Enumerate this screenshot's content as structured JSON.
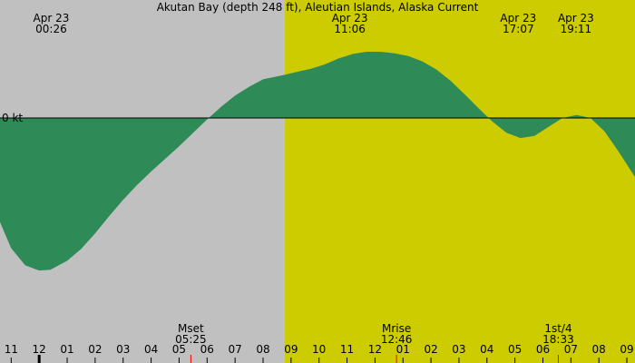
{
  "title": "Akutan Bay (depth 248 ft), Aleutian Islands, Alaska Current",
  "colors": {
    "night": "#c0c0c0",
    "day": "#cccc00",
    "current": "#2e8b57",
    "moon_tick": "#ff0000",
    "text": "#000000"
  },
  "chart_data": {
    "type": "area",
    "title": "Akutan Bay (depth 248 ft), Aleutian Islands, Alaska Current",
    "units": "kt",
    "zero_label": "0 kt",
    "hour_labels": [
      "11",
      "12",
      "01",
      "02",
      "03",
      "04",
      "05",
      "06",
      "07",
      "08",
      "09",
      "10",
      "11",
      "12",
      "01",
      "02",
      "03",
      "04",
      "05",
      "06",
      "07",
      "08",
      "09"
    ],
    "hour_label_start": 23,
    "midnight_label_index": 1,
    "daylight": {
      "start_hour": 32.78,
      "end_hour": 46.0
    },
    "top_events": [
      {
        "date": "Apr 23",
        "time": "00:26",
        "hour": 24.43
      },
      {
        "date": "Apr 23",
        "time": "11:06",
        "hour": 35.1
      },
      {
        "date": "Apr 23",
        "time": "17:07",
        "hour": 41.12
      },
      {
        "date": "Apr 23",
        "time": "19:11",
        "hour": 43.18
      }
    ],
    "bottom_events": [
      {
        "label": "Mset",
        "time": "05:25",
        "hour": 29.42
      },
      {
        "label": "Mrise",
        "time": "12:46",
        "hour": 36.77
      },
      {
        "label": "1st/4",
        "time": "18:33",
        "hour": 42.55
      }
    ],
    "moon_ticks": [
      29.42,
      36.77,
      42.55
    ],
    "x_range": [
      22.6,
      45.3
    ],
    "y_range": [
      -2.5,
      1.8
    ],
    "series": [
      {
        "hours": [
          22.6,
          23.0,
          23.5,
          24.0,
          24.4,
          25.0,
          25.5,
          26.0,
          26.5,
          27.0,
          27.5,
          28.0,
          28.5,
          29.0,
          29.5,
          30.0,
          30.5,
          31.0,
          31.5,
          32.0,
          32.78,
          33.2,
          33.7,
          34.2,
          34.7,
          35.2,
          35.7,
          36.2,
          36.7,
          37.2,
          37.7,
          38.2,
          38.7,
          39.2,
          39.7,
          40.2,
          40.7,
          41.2,
          41.7,
          42.2,
          42.7,
          43.2,
          43.7,
          44.2,
          44.7,
          45.3
        ],
        "knots": [
          -1.4,
          -1.75,
          -1.98,
          -2.05,
          -2.04,
          -1.92,
          -1.76,
          -1.55,
          -1.32,
          -1.1,
          -0.9,
          -0.72,
          -0.55,
          -0.38,
          -0.2,
          -0.02,
          0.15,
          0.3,
          0.42,
          0.52,
          0.58,
          0.62,
          0.66,
          0.72,
          0.8,
          0.86,
          0.89,
          0.89,
          0.87,
          0.83,
          0.76,
          0.65,
          0.5,
          0.32,
          0.13,
          -0.05,
          -0.2,
          -0.27,
          -0.24,
          -0.12,
          0.0,
          0.04,
          0.0,
          -0.18,
          -0.45,
          -0.8
        ]
      }
    ]
  }
}
